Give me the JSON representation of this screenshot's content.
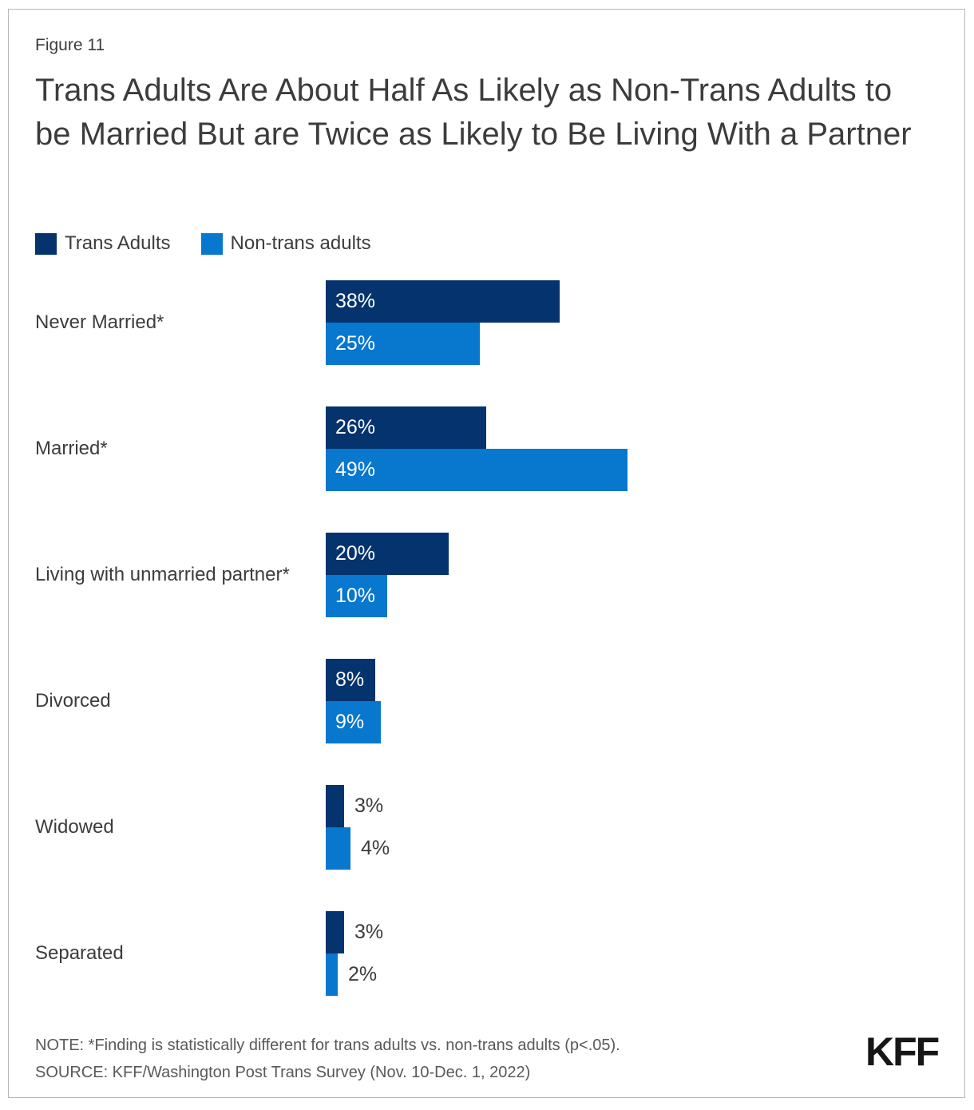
{
  "figure_label": "Figure 11",
  "title": "Trans Adults Are About Half As Likely as Non-Trans Adults to be Married But are Twice as Likely to Be Living With a Partner",
  "legend": [
    {
      "label": "Trans Adults",
      "color": "#04336E"
    },
    {
      "label": "Non-trans adults",
      "color": "#0877CE"
    }
  ],
  "chart_data": {
    "type": "bar",
    "orientation": "horizontal",
    "categories": [
      "Never Married*",
      "Married*",
      "Living with unmarried partner*",
      "Divorced",
      "Widowed",
      "Separated"
    ],
    "series": [
      {
        "name": "Trans Adults",
        "color": "#04336E",
        "values": [
          38,
          26,
          20,
          8,
          3,
          3
        ]
      },
      {
        "name": "Non-trans adults",
        "color": "#0877CE",
        "values": [
          25,
          49,
          10,
          9,
          4,
          2
        ]
      }
    ],
    "value_suffix": "%",
    "xlim": [
      0,
      100
    ],
    "grid": false,
    "legend_position": "top-left",
    "data_label_style": "inside start, outside for bars under ~7%"
  },
  "note": "NOTE: *Finding is statistically different for trans adults vs. non-trans adults (p<.05).",
  "source": "SOURCE: KFF/Washington Post Trans Survey (Nov. 10-Dec. 1, 2022)",
  "logo_text": "KFF"
}
